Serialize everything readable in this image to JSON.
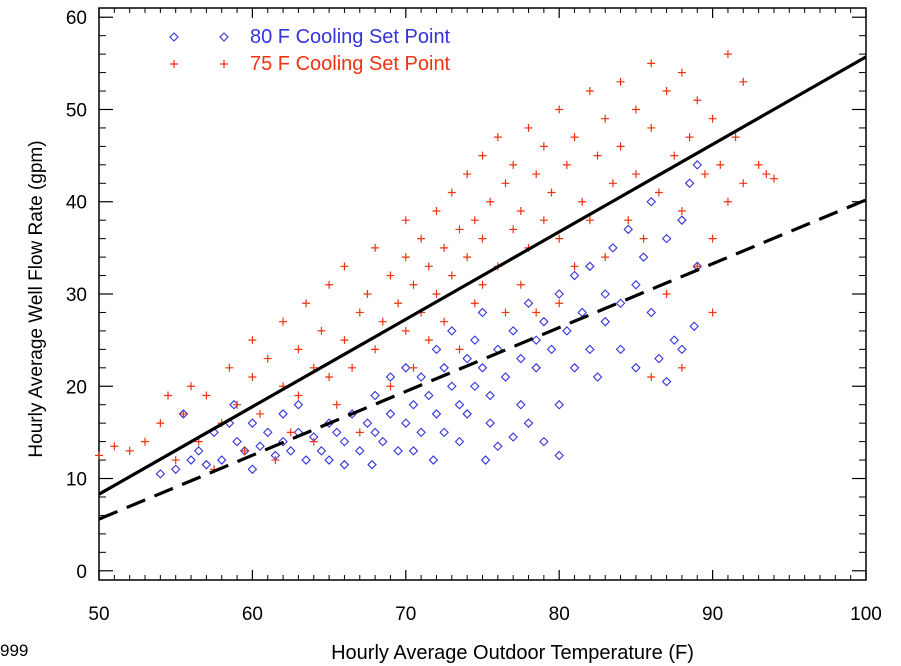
{
  "corner_text": "999",
  "chart_data": {
    "type": "scatter",
    "xlabel": "Hourly Average Outdoor Temperature (F)",
    "ylabel": "Hourly Average Well Flow Rate (gpm)",
    "xlim": [
      50,
      100
    ],
    "ylim": [
      -1,
      61
    ],
    "x_ticks": [
      50,
      60,
      70,
      80,
      90,
      100
    ],
    "y_ticks": [
      0,
      10,
      20,
      30,
      40,
      50,
      60
    ],
    "grid": false,
    "legend_position": "top-left",
    "series": [
      {
        "name": "80 F Cooling Set Point",
        "marker": "diamond",
        "color": "#3333dd",
        "x_range": [
          54,
          89
        ],
        "y_range": [
          10,
          44
        ],
        "points": [
          [
            54,
            10.5
          ],
          [
            55,
            11
          ],
          [
            55.5,
            17
          ],
          [
            56,
            12
          ],
          [
            56.5,
            13
          ],
          [
            57,
            11.5
          ],
          [
            57.5,
            15
          ],
          [
            58,
            12
          ],
          [
            58.5,
            16
          ],
          [
            58.8,
            18
          ],
          [
            59,
            14
          ],
          [
            59.5,
            13
          ],
          [
            60,
            11
          ],
          [
            60,
            16
          ],
          [
            60.5,
            13.5
          ],
          [
            61,
            15
          ],
          [
            61.5,
            12.5
          ],
          [
            62,
            14
          ],
          [
            62,
            17
          ],
          [
            62.5,
            13
          ],
          [
            63,
            15
          ],
          [
            63.5,
            12
          ],
          [
            63,
            18
          ],
          [
            64,
            14.5
          ],
          [
            64.5,
            13
          ],
          [
            65,
            16
          ],
          [
            65,
            12
          ],
          [
            65.5,
            15
          ],
          [
            66,
            14
          ],
          [
            66.5,
            17
          ],
          [
            66,
            11.5
          ],
          [
            67,
            13
          ],
          [
            67.5,
            16
          ],
          [
            67.8,
            11.5
          ],
          [
            68,
            15
          ],
          [
            68,
            19
          ],
          [
            68.5,
            14
          ],
          [
            69,
            17
          ],
          [
            69,
            21
          ],
          [
            69.5,
            13
          ],
          [
            70,
            16
          ],
          [
            70,
            22
          ],
          [
            70.5,
            18
          ],
          [
            70.5,
            13
          ],
          [
            71,
            21
          ],
          [
            71,
            15
          ],
          [
            71.5,
            19
          ],
          [
            71.8,
            12
          ],
          [
            72,
            17
          ],
          [
            72,
            24
          ],
          [
            72.5,
            22
          ],
          [
            72.5,
            15
          ],
          [
            73,
            20
          ],
          [
            73,
            26
          ],
          [
            73.5,
            18
          ],
          [
            73.5,
            14
          ],
          [
            74,
            23
          ],
          [
            74,
            17
          ],
          [
            74.5,
            25
          ],
          [
            74.5,
            20
          ],
          [
            75,
            22
          ],
          [
            75,
            28
          ],
          [
            75.2,
            12
          ],
          [
            75.5,
            19
          ],
          [
            75.5,
            16
          ],
          [
            76,
            24
          ],
          [
            76,
            13.5
          ],
          [
            76.5,
            21
          ],
          [
            77,
            26
          ],
          [
            77,
            14.5
          ],
          [
            77.5,
            23
          ],
          [
            77.5,
            18
          ],
          [
            78,
            29
          ],
          [
            78,
            16
          ],
          [
            78.5,
            25
          ],
          [
            78.5,
            22
          ],
          [
            79,
            27
          ],
          [
            79,
            14
          ],
          [
            79.5,
            24
          ],
          [
            80,
            30
          ],
          [
            80,
            18
          ],
          [
            80,
            12.5
          ],
          [
            80.5,
            26
          ],
          [
            81,
            22
          ],
          [
            81,
            32
          ],
          [
            81.5,
            28
          ],
          [
            82,
            24
          ],
          [
            82,
            33
          ],
          [
            82.5,
            21
          ],
          [
            83,
            30
          ],
          [
            83,
            27
          ],
          [
            83.5,
            35
          ],
          [
            84,
            29
          ],
          [
            84,
            24
          ],
          [
            84.5,
            37
          ],
          [
            85,
            31
          ],
          [
            85,
            22
          ],
          [
            85.5,
            34
          ],
          [
            86,
            40
          ],
          [
            86,
            28
          ],
          [
            86.5,
            23
          ],
          [
            87,
            36
          ],
          [
            87.5,
            25
          ],
          [
            88,
            38
          ],
          [
            88,
            24
          ],
          [
            88.5,
            42
          ],
          [
            88.8,
            26.5
          ],
          [
            89,
            44
          ],
          [
            89,
            33
          ],
          [
            87,
            20.5
          ]
        ]
      },
      {
        "name": "75 F Cooling Set Point",
        "marker": "plus",
        "color": "#ee3311",
        "x_range": [
          50,
          94
        ],
        "y_range": [
          10,
          57
        ],
        "points": [
          [
            50,
            12.5
          ],
          [
            51,
            13.5
          ],
          [
            52,
            13
          ],
          [
            53,
            14
          ],
          [
            54,
            16
          ],
          [
            54.5,
            19
          ],
          [
            55,
            12
          ],
          [
            55.5,
            17
          ],
          [
            56,
            20
          ],
          [
            56.5,
            14
          ],
          [
            57,
            19
          ],
          [
            57.5,
            11
          ],
          [
            58,
            16
          ],
          [
            58.5,
            22
          ],
          [
            59,
            18
          ],
          [
            59.5,
            13
          ],
          [
            60,
            21
          ],
          [
            60,
            25
          ],
          [
            60.5,
            17
          ],
          [
            61,
            23
          ],
          [
            61.5,
            12
          ],
          [
            62,
            20
          ],
          [
            62,
            27
          ],
          [
            62.5,
            15
          ],
          [
            63,
            24
          ],
          [
            63,
            19
          ],
          [
            63.5,
            29
          ],
          [
            64,
            22
          ],
          [
            64,
            14
          ],
          [
            64.5,
            26
          ],
          [
            65,
            21
          ],
          [
            65,
            31
          ],
          [
            65.5,
            18
          ],
          [
            66,
            25
          ],
          [
            66,
            33
          ],
          [
            66.5,
            22
          ],
          [
            67,
            28
          ],
          [
            67,
            15
          ],
          [
            67.5,
            30
          ],
          [
            68,
            24
          ],
          [
            68,
            35
          ],
          [
            68.5,
            27
          ],
          [
            69,
            32
          ],
          [
            69,
            20
          ],
          [
            69.5,
            29
          ],
          [
            70,
            34
          ],
          [
            70,
            26
          ],
          [
            70,
            38
          ],
          [
            70.5,
            31
          ],
          [
            70.5,
            22
          ],
          [
            71,
            36
          ],
          [
            71,
            28
          ],
          [
            71.5,
            33
          ],
          [
            71.5,
            25
          ],
          [
            72,
            39
          ],
          [
            72,
            30
          ],
          [
            72.5,
            35
          ],
          [
            72.5,
            27
          ],
          [
            73,
            41
          ],
          [
            73,
            32
          ],
          [
            73.5,
            37
          ],
          [
            73.5,
            24
          ],
          [
            74,
            43
          ],
          [
            74,
            34
          ],
          [
            74.5,
            38
          ],
          [
            74.5,
            29
          ],
          [
            75,
            45
          ],
          [
            75,
            36
          ],
          [
            75,
            31
          ],
          [
            75.5,
            40
          ],
          [
            76,
            47
          ],
          [
            76,
            33
          ],
          [
            76.5,
            42
          ],
          [
            76.5,
            28
          ],
          [
            77,
            44
          ],
          [
            77,
            37
          ],
          [
            77.5,
            39
          ],
          [
            77.5,
            31
          ],
          [
            78,
            48
          ],
          [
            78,
            35
          ],
          [
            78.5,
            43
          ],
          [
            78.5,
            28
          ],
          [
            79,
            46
          ],
          [
            79,
            38
          ],
          [
            79.5,
            41
          ],
          [
            80,
            50
          ],
          [
            80,
            36
          ],
          [
            80,
            29
          ],
          [
            80.5,
            44
          ],
          [
            81,
            47
          ],
          [
            81,
            33
          ],
          [
            81.5,
            40
          ],
          [
            82,
            52
          ],
          [
            82,
            38
          ],
          [
            82.5,
            45
          ],
          [
            83,
            49
          ],
          [
            83,
            34
          ],
          [
            83.5,
            42
          ],
          [
            84,
            53
          ],
          [
            84,
            46
          ],
          [
            84.5,
            38
          ],
          [
            85,
            50
          ],
          [
            85,
            43
          ],
          [
            85.5,
            36
          ],
          [
            86,
            55
          ],
          [
            86,
            48
          ],
          [
            86.5,
            41
          ],
          [
            87,
            52
          ],
          [
            87,
            30
          ],
          [
            87.5,
            45
          ],
          [
            88,
            54
          ],
          [
            88,
            39
          ],
          [
            88.5,
            47
          ],
          [
            89,
            51
          ],
          [
            89,
            33
          ],
          [
            89.5,
            43
          ],
          [
            90,
            49
          ],
          [
            90,
            36
          ],
          [
            90.5,
            44
          ],
          [
            91,
            56
          ],
          [
            91,
            40
          ],
          [
            91.5,
            47
          ],
          [
            92,
            53
          ],
          [
            92,
            42
          ],
          [
            93,
            44
          ],
          [
            93.5,
            43
          ],
          [
            94,
            42.5
          ],
          [
            90,
            28
          ],
          [
            88,
            22
          ],
          [
            86,
            21
          ]
        ]
      }
    ],
    "fit_lines": [
      {
        "style": "solid",
        "color": "#000000",
        "points": [
          [
            50,
            8.3
          ],
          [
            100,
            55.7
          ]
        ]
      },
      {
        "style": "dashed",
        "color": "#000000",
        "points": [
          [
            50,
            5.6
          ],
          [
            100,
            40.2
          ]
        ]
      }
    ]
  }
}
